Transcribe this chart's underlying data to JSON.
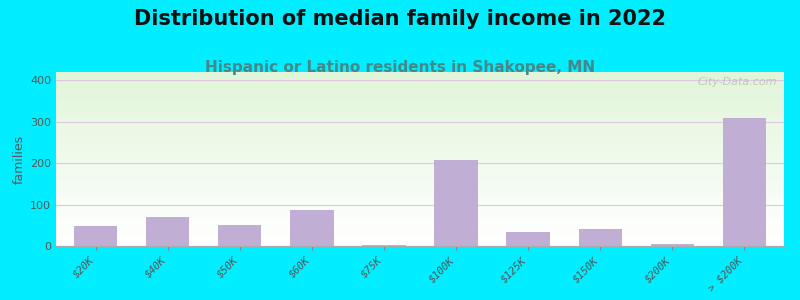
{
  "title": "Distribution of median family income in 2022",
  "subtitle": "Hispanic or Latino residents in Shakopee, MN",
  "ylabel": "families",
  "categories": [
    "$20K",
    "$40K",
    "$50K",
    "$60K",
    "$75K",
    "$100K",
    "$125K",
    "$150K",
    "$200K",
    "> $200K"
  ],
  "values": [
    48,
    70,
    50,
    87,
    3,
    207,
    34,
    42,
    5,
    310
  ],
  "bar_color": "#c0aed4",
  "background_outer": "#00eeff",
  "grid_color": "#ddc8e0",
  "yticks": [
    0,
    100,
    200,
    300,
    400
  ],
  "ylim": [
    0,
    420
  ],
  "title_fontsize": 15,
  "subtitle_fontsize": 11,
  "ylabel_fontsize": 9,
  "watermark": "City-Data.com"
}
